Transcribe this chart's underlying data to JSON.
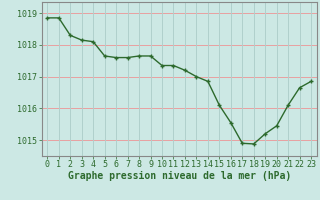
{
  "x": [
    0,
    1,
    2,
    3,
    4,
    5,
    6,
    7,
    8,
    9,
    10,
    11,
    12,
    13,
    14,
    15,
    16,
    17,
    18,
    19,
    20,
    21,
    22,
    23
  ],
  "y": [
    1018.85,
    1018.85,
    1018.3,
    1018.15,
    1018.1,
    1017.65,
    1017.6,
    1017.6,
    1017.65,
    1017.65,
    1017.35,
    1017.35,
    1017.2,
    1017.0,
    1016.85,
    1016.1,
    1015.55,
    1014.9,
    1014.88,
    1015.2,
    1015.45,
    1016.1,
    1016.65,
    1016.85
  ],
  "line_color": "#2d6a2d",
  "marker_color": "#2d6a2d",
  "bg_color": "#cce8e4",
  "grid_color_v": "#b0d0cc",
  "grid_color_h": "#e8a0a0",
  "axis_color": "#888888",
  "tick_color": "#2d6a2d",
  "xlabel_label": "Graphe pression niveau de la mer (hPa)",
  "ylim_min": 1014.5,
  "ylim_max": 1019.35,
  "yticks": [
    1015,
    1016,
    1017,
    1018,
    1019
  ],
  "xticks": [
    0,
    1,
    2,
    3,
    4,
    5,
    6,
    7,
    8,
    9,
    10,
    11,
    12,
    13,
    14,
    15,
    16,
    17,
    18,
    19,
    20,
    21,
    22,
    23
  ],
  "xlabel_fontsize": 7,
  "tick_fontsize": 6,
  "line_width": 1.0,
  "marker_size": 3.5
}
